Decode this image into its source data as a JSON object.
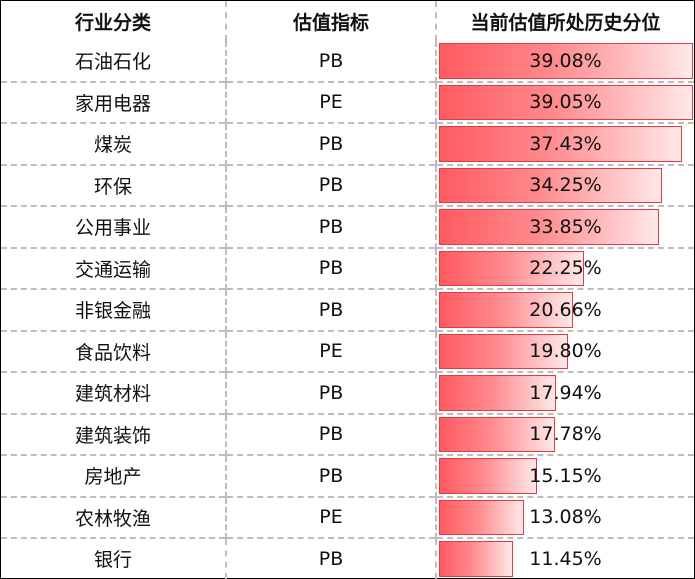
{
  "table": {
    "headers": [
      "行业分类",
      "估值指标",
      "当前估值所处历史分位"
    ],
    "rows": [
      {
        "industry": "石油石化",
        "metric": "PB",
        "percentile": "39.08%",
        "value": 39.08
      },
      {
        "industry": "家用电器",
        "metric": "PE",
        "percentile": "39.05%",
        "value": 39.05
      },
      {
        "industry": "煤炭",
        "metric": "PB",
        "percentile": "37.43%",
        "value": 37.43
      },
      {
        "industry": "环保",
        "metric": "PB",
        "percentile": "34.25%",
        "value": 34.25
      },
      {
        "industry": "公用事业",
        "metric": "PB",
        "percentile": "33.85%",
        "value": 33.85
      },
      {
        "industry": "交通运输",
        "metric": "PB",
        "percentile": "22.25%",
        "value": 22.25
      },
      {
        "industry": "非银金融",
        "metric": "PB",
        "percentile": "20.66%",
        "value": 20.66
      },
      {
        "industry": "食品饮料",
        "metric": "PE",
        "percentile": "19.80%",
        "value": 19.8
      },
      {
        "industry": "建筑材料",
        "metric": "PB",
        "percentile": "17.94%",
        "value": 17.94
      },
      {
        "industry": "建筑装饰",
        "metric": "PB",
        "percentile": "17.78%",
        "value": 17.78
      },
      {
        "industry": "房地产",
        "metric": "PB",
        "percentile": "15.15%",
        "value": 15.15
      },
      {
        "industry": "农林牧渔",
        "metric": "PE",
        "percentile": "13.08%",
        "value": 13.08
      },
      {
        "industry": "银行",
        "metric": "PB",
        "percentile": "11.45%",
        "value": 11.45
      }
    ]
  },
  "colors": {
    "bar_start": "#ff5a60",
    "bar_end": "#ffe8e9",
    "bar_border": "#e23b44",
    "grid": "#bdbdbd"
  }
}
